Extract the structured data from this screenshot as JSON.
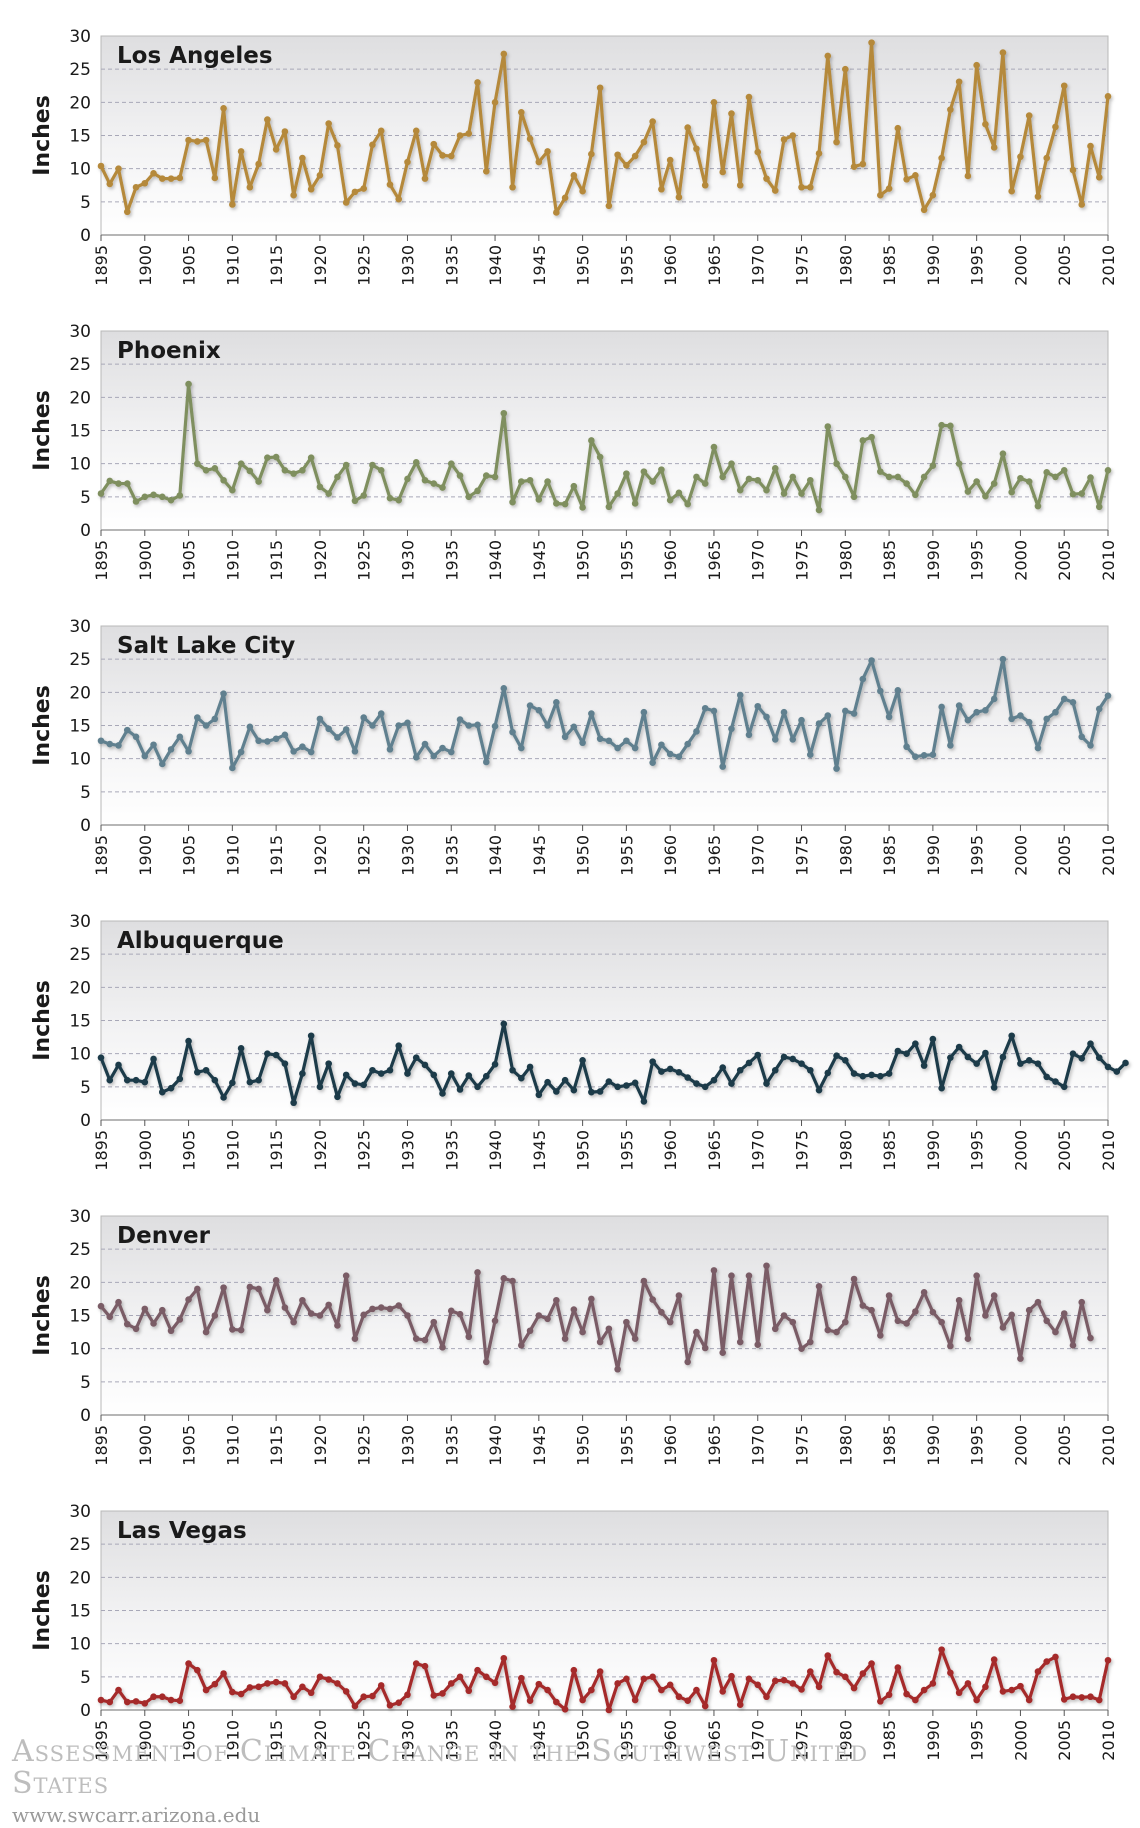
{
  "footer": {
    "title": "Assessment of Climate Change in the Southwest United States",
    "url": "www.swcarr.arizona.edu"
  },
  "chart_data": [
    {
      "type": "line",
      "title": "Los Angeles",
      "ylabel": "Inches",
      "color": "#b5893a",
      "xlim": [
        1895,
        2010
      ],
      "ylim": [
        0,
        30
      ],
      "yticks": [
        0,
        5,
        10,
        15,
        20,
        25,
        30
      ],
      "xticks": [
        1895,
        1900,
        1905,
        1910,
        1915,
        1920,
        1925,
        1930,
        1935,
        1940,
        1945,
        1950,
        1955,
        1960,
        1965,
        1970,
        1975,
        1980,
        1985,
        1990,
        1995,
        2000,
        2005,
        2010
      ],
      "x_start": 1895,
      "values": [
        10.4,
        7.7,
        10.0,
        3.5,
        7.2,
        7.8,
        9.3,
        8.5,
        8.5,
        8.6,
        14.3,
        14.1,
        14.3,
        8.6,
        19.1,
        4.6,
        12.6,
        7.2,
        10.7,
        17.4,
        12.9,
        15.6,
        6.0,
        11.6,
        6.9,
        9.0,
        16.8,
        13.5,
        4.9,
        6.5,
        7.0,
        13.6,
        15.7,
        7.6,
        5.4,
        11.0,
        15.7,
        8.5,
        13.7,
        12.0,
        11.9,
        15.0,
        15.3,
        23.0,
        9.6,
        20.0,
        27.3,
        7.2,
        18.5,
        14.5,
        11.0,
        12.6,
        3.4,
        5.6,
        9.0,
        6.6,
        12.2,
        22.2,
        4.4,
        12.1,
        10.5,
        11.9,
        14.0,
        17.1,
        6.9,
        11.3,
        5.7,
        16.2,
        13.0,
        7.5,
        20.0,
        9.5,
        18.3,
        7.5,
        20.8,
        12.5,
        8.5,
        6.7,
        14.4,
        15.0,
        7.2,
        7.2,
        12.3,
        27.0,
        14.0,
        25.0,
        10.3,
        10.7,
        29.0,
        6.0,
        7.0,
        16.1,
        8.4,
        9.0,
        3.8,
        6.0,
        11.6,
        18.9,
        23.1,
        8.9,
        25.6,
        16.7,
        13.2,
        27.5,
        6.6,
        11.8,
        18.0,
        5.8,
        11.6,
        16.3,
        22.5,
        9.8,
        4.6,
        13.4,
        8.7,
        20.9
      ]
    },
    {
      "type": "line",
      "title": "Phoenix",
      "ylabel": "Inches",
      "color": "#7f8f5e",
      "xlim": [
        1895,
        2010
      ],
      "ylim": [
        0,
        30
      ],
      "yticks": [
        0,
        5,
        10,
        15,
        20,
        25,
        30
      ],
      "xticks": [
        1895,
        1900,
        1905,
        1910,
        1915,
        1920,
        1925,
        1930,
        1935,
        1940,
        1945,
        1950,
        1955,
        1960,
        1965,
        1970,
        1975,
        1980,
        1985,
        1990,
        1995,
        2000,
        2005,
        2010
      ],
      "x_start": 1895,
      "values": [
        5.5,
        7.4,
        7.0,
        7.0,
        4.3,
        5.0,
        5.3,
        5.0,
        4.5,
        5.2,
        22.0,
        10.0,
        9.0,
        9.3,
        7.5,
        6.0,
        10.0,
        8.9,
        7.3,
        10.9,
        11.0,
        9.0,
        8.5,
        9.0,
        10.9,
        6.5,
        5.5,
        8.0,
        9.8,
        4.4,
        5.2,
        9.8,
        9.0,
        4.8,
        4.5,
        7.7,
        10.2,
        7.5,
        7.0,
        6.4,
        10.0,
        8.2,
        5.0,
        5.9,
        8.2,
        8.0,
        17.6,
        4.2,
        7.3,
        7.5,
        4.6,
        7.3,
        4.0,
        3.9,
        6.6,
        3.4,
        13.5,
        11.0,
        3.5,
        5.5,
        8.5,
        4.0,
        8.8,
        7.3,
        9.1,
        4.5,
        5.6,
        3.9,
        8.0,
        7.0,
        12.5,
        8.0,
        10.0,
        6.0,
        7.7,
        7.5,
        6.0,
        9.3,
        5.5,
        8.0,
        5.5,
        7.5,
        3.0,
        15.6,
        10.0,
        8.0,
        5.0,
        13.5,
        14.0,
        8.8,
        8.0,
        8.0,
        7.0,
        5.3,
        8.0,
        9.7,
        15.8,
        15.7,
        10.0,
        5.8,
        7.3,
        5.1,
        7.0,
        11.5,
        5.7,
        7.8,
        7.3,
        3.6,
        8.7,
        8.0,
        9.0,
        5.4,
        5.5,
        7.9,
        3.5,
        9.0
      ]
    },
    {
      "type": "line",
      "title": "Salt Lake City",
      "ylabel": "Inches",
      "color": "#61808f",
      "xlim": [
        1895,
        2010
      ],
      "ylim": [
        0,
        30
      ],
      "yticks": [
        0,
        5,
        10,
        15,
        20,
        25,
        30
      ],
      "xticks": [
        1895,
        1900,
        1905,
        1910,
        1915,
        1920,
        1925,
        1930,
        1935,
        1940,
        1945,
        1950,
        1955,
        1960,
        1965,
        1970,
        1975,
        1980,
        1985,
        1990,
        1995,
        2000,
        2005,
        2010
      ],
      "x_start": 1895,
      "values": [
        12.7,
        12.2,
        12.0,
        14.3,
        13.3,
        10.4,
        12.1,
        9.2,
        11.4,
        13.3,
        11.1,
        16.2,
        15.0,
        16.0,
        19.8,
        8.6,
        11.0,
        14.8,
        12.7,
        12.6,
        13.0,
        13.6,
        11.1,
        11.8,
        11.0,
        16.0,
        14.5,
        13.2,
        14.4,
        11.1,
        16.2,
        15.0,
        16.8,
        11.4,
        15.0,
        15.4,
        10.2,
        12.2,
        10.4,
        11.6,
        11.0,
        15.9,
        15.0,
        15.1,
        9.5,
        14.9,
        20.6,
        14.0,
        11.6,
        18.0,
        17.3,
        15.0,
        18.5,
        13.3,
        14.8,
        12.4,
        16.8,
        13.0,
        12.7,
        11.6,
        12.7,
        11.6,
        17.0,
        9.4,
        12.1,
        10.7,
        10.3,
        12.2,
        14.1,
        17.6,
        17.2,
        8.8,
        14.5,
        19.6,
        13.6,
        17.9,
        16.3,
        12.9,
        17.0,
        12.9,
        15.8,
        10.6,
        15.3,
        16.5,
        8.5,
        17.2,
        16.8,
        22.0,
        24.8,
        20.2,
        16.3,
        20.3,
        11.8,
        10.3,
        10.5,
        10.6,
        17.8,
        12.0,
        18.0,
        15.8,
        17.0,
        17.3,
        19.0,
        25.0,
        16.0,
        16.5,
        15.5,
        11.6,
        16.0,
        17.0,
        19.0,
        18.5,
        13.3,
        12.0,
        17.5,
        19.5
      ]
    },
    {
      "type": "line",
      "title": "Albuquerque",
      "ylabel": "Inches",
      "color": "#1b3a4a",
      "xlim": [
        1895,
        2010
      ],
      "ylim": [
        0,
        30
      ],
      "yticks": [
        0,
        5,
        10,
        15,
        20,
        25,
        30
      ],
      "xticks": [
        1895,
        1900,
        1905,
        1910,
        1915,
        1920,
        1925,
        1930,
        1935,
        1940,
        1945,
        1950,
        1955,
        1960,
        1965,
        1970,
        1975,
        1980,
        1985,
        1990,
        1995,
        2000,
        2005,
        2010
      ],
      "x_start": 1895,
      "values": [
        9.4,
        6.0,
        8.3,
        6.0,
        6.0,
        5.7,
        9.2,
        4.2,
        4.8,
        6.2,
        11.9,
        7.2,
        7.5,
        6.0,
        3.4,
        5.6,
        10.8,
        5.7,
        6.0,
        10.0,
        9.8,
        8.5,
        2.6,
        7.0,
        12.7,
        5.0,
        8.5,
        3.5,
        6.8,
        5.5,
        5.3,
        7.5,
        7.0,
        7.5,
        11.2,
        7.0,
        9.4,
        8.3,
        6.8,
        4.0,
        7.0,
        4.6,
        6.7,
        5.0,
        6.6,
        8.4,
        14.5,
        7.5,
        6.3,
        8.0,
        3.8,
        5.7,
        4.3,
        6.0,
        4.5,
        9.0,
        4.2,
        4.3,
        5.8,
        5.0,
        5.2,
        5.6,
        2.8,
        8.8,
        7.3,
        7.7,
        7.2,
        6.4,
        5.5,
        5.0,
        6.0,
        7.9,
        5.5,
        7.5,
        8.6,
        9.8,
        5.5,
        7.5,
        9.5,
        9.2,
        8.5,
        7.5,
        4.5,
        7.1,
        9.7,
        9.0,
        7.0,
        6.6,
        6.8,
        6.6,
        7.0,
        10.4,
        10.0,
        11.5,
        8.2,
        12.2,
        4.8,
        9.4,
        11.0,
        9.5,
        8.5,
        10.1,
        4.9,
        9.5,
        12.7,
        8.5,
        9.0,
        8.5,
        6.5,
        5.8,
        5.0,
        10.0,
        9.3,
        11.5,
        9.4,
        8.0,
        7.3,
        8.6
      ]
    },
    {
      "type": "line",
      "title": "Denver",
      "ylabel": "Inches",
      "color": "#7a5c66",
      "xlim": [
        1895,
        2010
      ],
      "ylim": [
        0,
        30
      ],
      "yticks": [
        0,
        5,
        10,
        15,
        20,
        25,
        30
      ],
      "xticks": [
        1895,
        1900,
        1905,
        1910,
        1915,
        1920,
        1925,
        1930,
        1935,
        1940,
        1945,
        1950,
        1955,
        1960,
        1965,
        1970,
        1975,
        1980,
        1985,
        1990,
        1995,
        2000,
        2005,
        2010
      ],
      "x_start": 1895,
      "values": [
        16.4,
        14.8,
        17.0,
        13.7,
        13.0,
        16.0,
        13.8,
        15.8,
        12.7,
        14.4,
        17.4,
        19.0,
        12.5,
        15.0,
        19.2,
        12.9,
        12.8,
        19.3,
        19.0,
        15.8,
        20.3,
        16.2,
        14.0,
        17.3,
        15.3,
        15.0,
        16.6,
        13.5,
        21.0,
        11.5,
        15.1,
        16.0,
        16.2,
        16.0,
        16.5,
        15.0,
        11.5,
        11.3,
        14.0,
        10.2,
        15.7,
        15.2,
        11.8,
        21.5,
        8.0,
        14.2,
        20.6,
        20.2,
        10.5,
        12.7,
        15.0,
        14.5,
        17.3,
        11.5,
        15.9,
        12.5,
        17.5,
        11.0,
        13.0,
        6.9,
        14.0,
        11.5,
        20.2,
        17.4,
        15.5,
        14.0,
        18.0,
        8.0,
        12.5,
        10.1,
        21.8,
        9.4,
        21.0,
        11.0,
        21.0,
        10.6,
        22.5,
        13.0,
        15.0,
        14.0,
        10.0,
        11.0,
        19.4,
        12.8,
        12.5,
        14.0,
        20.5,
        16.5,
        15.8,
        12.0,
        18.0,
        14.2,
        13.8,
        15.6,
        18.5,
        15.5,
        14.0,
        10.4,
        17.3,
        11.5,
        21.0,
        15.0,
        18.0,
        13.2,
        15.1,
        8.5,
        15.8,
        17.0,
        14.2,
        12.5,
        15.3,
        10.5,
        17.0,
        11.6
      ]
    },
    {
      "type": "line",
      "title": "Las Vegas",
      "ylabel": "Inches",
      "color": "#a52a2a",
      "xlim": [
        1895,
        2010
      ],
      "ylim": [
        0,
        30
      ],
      "yticks": [
        0,
        5,
        10,
        15,
        20,
        25,
        30
      ],
      "xticks": [
        1895,
        1900,
        1905,
        1910,
        1915,
        1920,
        1925,
        1930,
        1935,
        1940,
        1945,
        1950,
        1955,
        1960,
        1965,
        1970,
        1975,
        1980,
        1985,
        1990,
        1995,
        2000,
        2005,
        2010
      ],
      "x_start": 1895,
      "values": [
        1.5,
        1.2,
        3.0,
        1.2,
        1.3,
        1.0,
        2.0,
        2.0,
        1.5,
        1.4,
        7.0,
        6.0,
        3.0,
        3.9,
        5.5,
        2.7,
        2.4,
        3.4,
        3.5,
        4.0,
        4.2,
        4.0,
        2.0,
        3.5,
        2.6,
        5.0,
        4.6,
        4.0,
        2.8,
        0.6,
        2.0,
        2.1,
        3.7,
        0.7,
        1.1,
        2.3,
        7.0,
        6.6,
        2.2,
        2.5,
        4.0,
        5.0,
        2.9,
        6.0,
        5.0,
        4.1,
        7.8,
        0.5,
        4.8,
        1.4,
        3.9,
        3.0,
        1.2,
        0.1,
        6.0,
        1.5,
        3.0,
        5.8,
        0.0,
        4.0,
        4.7,
        1.5,
        4.7,
        5.0,
        3.0,
        3.8,
        2.0,
        1.4,
        3.0,
        0.6,
        7.5,
        2.8,
        5.1,
        0.8,
        4.7,
        3.8,
        2.0,
        4.4,
        4.5,
        4.0,
        3.1,
        5.8,
        3.5,
        8.2,
        5.7,
        5.0,
        3.3,
        5.5,
        7.0,
        1.3,
        2.3,
        6.4,
        2.4,
        1.5,
        3.0,
        4.0,
        9.1,
        5.6,
        2.6,
        4.0,
        1.5,
        3.5,
        7.6,
        2.8,
        3.0,
        3.6,
        1.5,
        5.8,
        7.3,
        8.0,
        1.6,
        2.0,
        1.9,
        2.0,
        1.5,
        7.5
      ]
    }
  ]
}
